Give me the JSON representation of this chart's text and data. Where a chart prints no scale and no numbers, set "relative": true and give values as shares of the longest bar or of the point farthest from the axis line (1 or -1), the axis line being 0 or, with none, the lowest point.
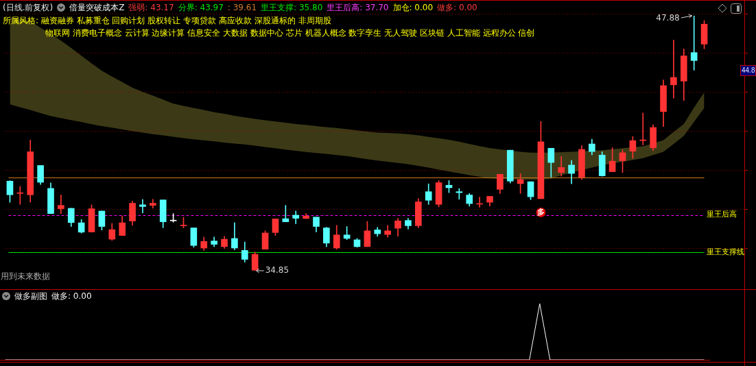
{
  "chart_data": [
    {
      "type": "candlestick",
      "title": "(日线.前复权)",
      "annotations": [
        "倍量突破成本Z",
        "强弱: 43.17",
        "分界: 43.97",
        ": 39.61",
        "里王支撑: 35.80",
        "里王后高: 37.70",
        "加仓: 0.00",
        "做多: 0.00",
        "所属风格: 融资融券 私募重仓 回购计划 股权转让 专项贷款 高应收款 深股通标的 非周期股",
        "物联网 消费电子概念 云计算 边缘计算 信息安全 大数据 数据中心 芯片 机器人概念 数字孪生 无人驾驶 区块链 人工智能 远程办公 信创",
        "用到未来数据",
        "44.8",
        "47.88",
        "34.85"
      ],
      "categories": [
        null,
        null,
        null,
        null,
        null,
        null,
        null,
        null,
        null,
        null,
        null,
        null,
        null,
        null,
        null,
        null,
        null,
        null,
        null,
        null,
        null,
        null,
        null,
        null,
        null,
        null,
        null,
        null,
        null,
        null,
        null,
        null,
        null,
        null,
        null,
        null,
        null,
        null,
        null,
        null,
        null,
        null,
        null,
        null,
        null,
        null,
        null,
        null,
        null,
        null,
        null,
        null,
        null,
        null,
        null,
        null,
        null,
        null,
        null,
        null,
        null,
        null,
        null,
        null,
        null,
        null,
        null,
        null,
        null
      ],
      "ohlc": [
        [
          39.43,
          39.45,
          38.35,
          38.73
        ],
        [
          38.8,
          39.16,
          38.24,
          38.82
        ],
        [
          38.73,
          41.53,
          38.35,
          40.93
        ],
        [
          40.23,
          40.23,
          39.26,
          39.37
        ],
        [
          39.06,
          39.34,
          37.77,
          37.77
        ],
        [
          38.02,
          38.72,
          37.77,
          38.19
        ],
        [
          38.04,
          38.04,
          37.11,
          37.31
        ],
        [
          37.3,
          37.47,
          36.77,
          36.82
        ],
        [
          36.83,
          38.22,
          36.83,
          38.02
        ],
        [
          37.9,
          37.9,
          36.93,
          37.11
        ],
        [
          36.46,
          37.27,
          36.4,
          36.95
        ],
        [
          36.65,
          37.65,
          36.65,
          37.3
        ],
        [
          37.39,
          38.41,
          37.17,
          38.3
        ],
        [
          38.22,
          38.49,
          37.8,
          38.13
        ],
        [
          38.19,
          38.5,
          38.05,
          38.3
        ],
        [
          38.47,
          38.47,
          37.05,
          37.35
        ],
        [
          37.4,
          37.77,
          37.33,
          37.41
        ],
        [
          37.15,
          37.58,
          37.04,
          37.17
        ],
        [
          37.04,
          37.04,
          36.05,
          36.14
        ],
        [
          36.01,
          36.57,
          35.89,
          36.35
        ],
        [
          36.37,
          36.57,
          36.08,
          36.2
        ],
        [
          36.08,
          36.61,
          35.99,
          36.46
        ],
        [
          36.5,
          37.31,
          35.92,
          36.01
        ],
        [
          35.89,
          36.32,
          35.29,
          35.43
        ],
        [
          34.88,
          35.81,
          34.85,
          35.69
        ],
        [
          35.95,
          36.89,
          35.95,
          36.78
        ],
        [
          36.8,
          37.5,
          36.65,
          37.5
        ],
        [
          37.51,
          38.19,
          37.35,
          37.35
        ],
        [
          37.69,
          37.9,
          37.25,
          37.53
        ],
        [
          37.52,
          37.77,
          37.51,
          37.64
        ],
        [
          37.59,
          37.59,
          36.83,
          37.11
        ],
        [
          37.04,
          37.07,
          36.08,
          36.26
        ],
        [
          36.01,
          37.17,
          35.95,
          36.68
        ],
        [
          36.68,
          37.11,
          36.44,
          36.5
        ],
        [
          36.43,
          36.5,
          36.05,
          36.08
        ],
        [
          36.08,
          37.37,
          36.08,
          36.89
        ],
        [
          36.94,
          37.07,
          36.61,
          36.74
        ],
        [
          36.7,
          37.17,
          36.56,
          36.89
        ],
        [
          37.02,
          37.53,
          36.61,
          37.4
        ],
        [
          37.42,
          37.53,
          36.98,
          37.15
        ],
        [
          37.15,
          38.54,
          37.04,
          38.37
        ],
        [
          38.89,
          39.29,
          38.24,
          38.45
        ],
        [
          38.24,
          39.46,
          38.11,
          39.35
        ],
        [
          39.22,
          39.46,
          38.84,
          39.09
        ],
        [
          38.89,
          39.05,
          38.5,
          38.84
        ],
        [
          38.72,
          38.8,
          38.15,
          38.28
        ],
        [
          38.25,
          38.61,
          38.09,
          38.27
        ],
        [
          38.35,
          38.65,
          38.15,
          38.65
        ],
        [
          39.01,
          39.78,
          38.79,
          39.78
        ],
        [
          41.01,
          41.01,
          39.33,
          39.43
        ],
        [
          39.3,
          39.81,
          38.8,
          39.51
        ],
        [
          39.4,
          39.4,
          38.48,
          38.63
        ],
        [
          38.53,
          42.48,
          38.53,
          41.44
        ],
        [
          41.11,
          41.11,
          39.63,
          40.38
        ],
        [
          39.87,
          40.69,
          39.68,
          40.13
        ],
        [
          40.25,
          40.49,
          39.29,
          39.82
        ],
        [
          39.63,
          41.24,
          39.52,
          41.05
        ],
        [
          41.33,
          41.57,
          40.77,
          40.94
        ],
        [
          40.76,
          40.93,
          39.68,
          39.7
        ],
        [
          39.91,
          41.14,
          39.91,
          40.45
        ],
        [
          40.47,
          41.02,
          39.87,
          40.88
        ],
        [
          40.96,
          41.71,
          40.59,
          41.5
        ],
        [
          41.5,
          42.91,
          41.28,
          41.52
        ],
        [
          41.13,
          42.31,
          40.99,
          42.17
        ],
        [
          42.98,
          44.6,
          42.22,
          44.31
        ],
        [
          44.35,
          46.63,
          43.67,
          44.73
        ],
        [
          44.54,
          46.19,
          43.55,
          45.83
        ],
        [
          46.0,
          47.88,
          45.1,
          45.59
        ],
        [
          46.43,
          47.63,
          46.19,
          47.45
        ]
      ],
      "colors": [
        "#55ffff",
        "#ff3333",
        "#ff3333",
        "#55ffff",
        "#55ffff",
        "#ff3333",
        "#55ffff",
        "#55ffff",
        "#ff3333",
        "#55ffff",
        "#ff3333",
        "#ff3333",
        "#ff3333",
        "#55ffff",
        "#ff3333",
        "#55ffff",
        "#ffffff",
        "#ff3333",
        "#55ffff",
        "#ff3333",
        "#55ffff",
        "#ff3333",
        "#55ffff",
        "#55ffff",
        "#ff3333",
        "#ff3333",
        "#ff3333",
        "#55ffff",
        "#55ffff",
        "#ff3333",
        "#55ffff",
        "#55ffff",
        "#ff3333",
        "#55ffff",
        "#55ffff",
        "#ff3333",
        "#55ffff",
        "#ff3333",
        "#ff3333",
        "#55ffff",
        "#ff3333",
        "#55ffff",
        "#ff3333",
        "#55ffff",
        "#55ffff",
        "#55ffff",
        "#ff3333",
        "#ff3333",
        "#ff3333",
        "#55ffff",
        "#ff3333",
        "#55ffff",
        "#ff3333",
        "#55ffff",
        "#ff3333",
        "#55ffff",
        "#ff3333",
        "#55ffff",
        "#55ffff",
        "#ff3333",
        "#ff3333",
        "#ff3333",
        "#ff3333",
        "#ff3333",
        "#ff3333",
        "#ff3333",
        "#ff3333",
        "#55ffff",
        "#ff3333"
      ],
      "series": [
        {
          "type": "area",
          "color": "#3c3a16",
          "values": [
            null,
            null,
            null,
            null,
            null,
            null,
            null,
            null,
            null,
            null,
            null,
            null,
            null,
            null,
            null,
            null,
            null,
            null,
            null,
            null,
            null,
            null,
            null,
            null,
            null,
            null,
            null,
            null,
            null,
            null,
            null,
            null,
            null,
            null,
            null,
            null,
            null,
            null,
            null,
            null,
            null,
            null,
            null,
            null,
            null,
            null,
            null,
            null,
            null,
            null,
            null,
            null,
            null,
            null,
            null,
            null,
            null,
            null,
            null,
            null,
            null,
            null,
            null,
            null,
            null,
            null,
            null,
            null,
            null
          ],
          "upper": [
            47.81,
            47.72,
            47.6,
            47.27,
            46.94,
            46.61,
            46.23,
            45.84,
            45.45,
            45.07,
            44.77,
            44.49,
            44.2,
            43.99,
            43.8,
            43.6,
            43.39,
            43.27,
            43.17,
            43.06,
            42.95,
            42.87,
            42.77,
            42.69,
            42.61,
            42.54,
            42.48,
            42.42,
            42.35,
            42.3,
            42.24,
            42.19,
            42.14,
            42.08,
            42.02,
            41.96,
            41.91,
            41.89,
            41.86,
            41.83,
            41.77,
            41.69,
            41.62,
            41.54,
            41.44,
            41.33,
            41.22,
            41.12,
            41.05,
            40.99,
            40.93,
            40.88,
            40.88,
            40.89,
            40.91,
            40.93,
            40.95,
            40.98,
            41.01,
            41.06,
            41.11,
            41.16,
            41.21,
            41.36,
            41.52,
            41.94,
            42.35,
            43.19,
            43.97
          ],
          "lower": [
            43.35,
            43.2,
            43.06,
            42.91,
            42.76,
            42.65,
            42.55,
            42.45,
            42.34,
            42.24,
            42.16,
            42.07,
            41.99,
            41.91,
            41.83,
            41.77,
            41.7,
            41.63,
            41.57,
            41.51,
            41.46,
            41.4,
            41.35,
            41.3,
            41.24,
            41.17,
            41.11,
            41.04,
            40.98,
            40.92,
            40.87,
            40.82,
            40.76,
            40.71,
            40.63,
            40.55,
            40.48,
            40.42,
            40.36,
            40.3,
            40.21,
            40.12,
            40.02,
            39.92,
            39.83,
            39.74,
            39.65,
            39.57,
            39.54,
            39.52,
            39.51,
            39.51,
            39.51,
            39.55,
            39.73,
            39.87,
            40.0,
            40.12,
            40.24,
            40.33,
            40.42,
            40.51,
            40.6,
            40.76,
            40.93,
            41.33,
            41.74,
            42.46,
            43.17
          ]
        },
        {
          "type": "scatter",
          "name": "多",
          "color": "#e60000",
          "marker": "circle",
          "values": [
            null,
            null,
            null,
            null,
            null,
            null,
            null,
            null,
            null,
            null,
            null,
            null,
            null,
            null,
            null,
            null,
            null,
            null,
            null,
            null,
            null,
            null,
            null,
            null,
            null,
            null,
            null,
            null,
            null,
            null,
            null,
            null,
            null,
            null,
            null,
            null,
            null,
            null,
            null,
            null,
            null,
            null,
            null,
            null,
            null,
            null,
            null,
            null,
            null,
            null,
            null,
            null,
            37.83,
            null,
            null,
            null,
            null,
            null,
            null,
            null,
            null,
            null,
            null,
            null,
            null,
            null,
            null,
            null,
            null
          ]
        }
      ],
      "yticks": [
        {
          "value": 36,
          "label": null
        },
        {
          "value": 38,
          "label": null
        },
        {
          "value": 40,
          "label": null
        },
        {
          "value": 42,
          "label": null
        },
        {
          "value": 44,
          "label": null
        },
        {
          "value": 46,
          "label": null
        },
        {
          "value": 48,
          "label": null
        }
      ],
      "grid": "y",
      "ref_lines": [
        {
          "axis": "y",
          "value": 39.61,
          "color": "#d2781e"
        },
        {
          "axis": "y",
          "value": 37.7,
          "label": "里王后高",
          "color": "#ff00ff",
          "line_style": "dashed"
        },
        {
          "axis": "y",
          "value": 35.8,
          "label": "里王支撑线",
          "color": "#00e600"
        }
      ]
    },
    {
      "type": "line",
      "title": "做多副图",
      "annotations": [
        "做多: 0.00"
      ],
      "categories": [
        null,
        null,
        null,
        null,
        null,
        null,
        null,
        null,
        null,
        null,
        null,
        null,
        null,
        null,
        null,
        null,
        null,
        null,
        null,
        null,
        null,
        null,
        null,
        null,
        null,
        null,
        null,
        null,
        null,
        null,
        null,
        null,
        null,
        null,
        null,
        null,
        null,
        null,
        null,
        null,
        null,
        null,
        null,
        null,
        null,
        null,
        null,
        null,
        null,
        null,
        null,
        null,
        null,
        null,
        null,
        null,
        null,
        null,
        null,
        null,
        null,
        null,
        null,
        null,
        null,
        null,
        null,
        null,
        null
      ],
      "values": [
        0,
        0,
        0,
        0,
        0,
        0,
        0,
        0,
        0,
        0,
        0,
        0,
        0,
        0,
        0,
        0,
        0,
        0,
        0,
        0,
        0,
        0,
        0,
        0,
        0,
        0,
        0,
        0,
        0,
        0,
        0,
        0,
        0,
        0,
        0,
        0,
        0,
        0,
        0,
        0,
        0,
        0,
        0,
        0,
        0,
        0,
        0,
        0,
        0,
        0,
        0,
        0,
        1,
        0,
        0,
        0,
        0,
        0,
        0,
        0,
        0,
        0,
        0,
        0,
        0,
        0,
        0,
        0,
        0
      ],
      "color": "#ffffff",
      "relative": true
    }
  ]
}
